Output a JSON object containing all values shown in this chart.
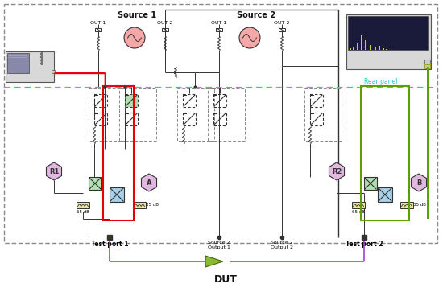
{
  "bg_color": "#ffffff",
  "gray_dash": "#888888",
  "cyan_dash": "#29c5d4",
  "red": "#e8000a",
  "green": "#5aa000",
  "purple": "#9b30d0",
  "dark": "#333333",
  "pink": "#f5a8a8",
  "lt_green": "#b0e0b0",
  "lt_blue": "#a8d0e8",
  "lt_purple": "#e0b8e0",
  "beige": "#e8e8a0",
  "src1": "Source 1",
  "src2": "Source 2",
  "rear": "Rear panel",
  "r1": "R1",
  "r2": "R2",
  "a": "A",
  "b": "B",
  "dut": "DUT",
  "tp1": "Test port 1",
  "tp2": "Test port 2",
  "s2o1": "Source 2\nOutput 1",
  "s2o2": "Source 2\nOutput 2",
  "out1": "OUT 1",
  "out2": "OUT 2",
  "65db": "65 dB",
  "35db": "35 dB"
}
